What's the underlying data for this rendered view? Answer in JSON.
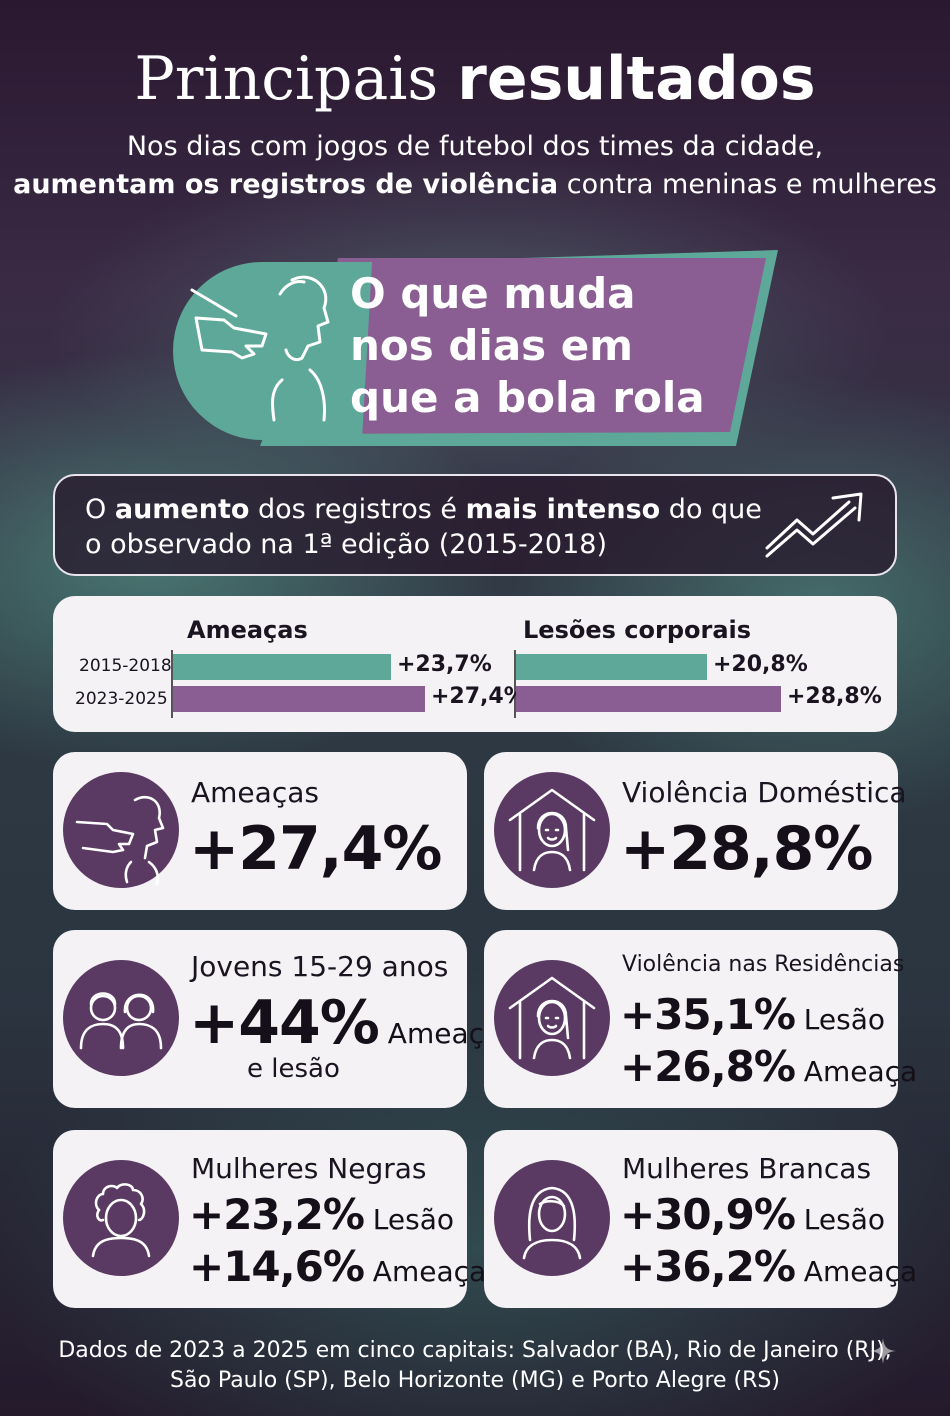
{
  "header": {
    "title_light": "Principais ",
    "title_bold": "resultados",
    "subtitle_line1": "Nos dias com jogos de futebol dos times da cidade,",
    "subtitle_line2_bold": "aumentam os registros de violência",
    "subtitle_line2_rest": " contra meninas e mulheres"
  },
  "banner": {
    "line1": "O que muda",
    "line2": "nos dias em",
    "line3": "que a bola rola",
    "icon": "pointing-hand-face-icon"
  },
  "intense": {
    "part1": "O ",
    "part2_bold": "aumento",
    "part3": " dos registros é ",
    "part4_bold": "mais intenso",
    "part5": " do que",
    "line2": "o observado na 1ª edição (2015-2018)",
    "icon": "trend-up-arrow-icon"
  },
  "comparison": {
    "periods": [
      "2015-2018",
      "2023-2025"
    ],
    "groups": [
      {
        "title": "Ameaças",
        "values": [
          "+23,7%",
          "+27,4%"
        ],
        "numeric": [
          23.7,
          27.4
        ]
      },
      {
        "title": "Lesões corporais",
        "values": [
          "+20,8%",
          "+28,8%"
        ],
        "numeric": [
          20.8,
          28.8
        ]
      }
    ],
    "colors": {
      "first": "#5ea89a",
      "second": "#8a5e92"
    }
  },
  "cards": {
    "ameacas": {
      "label": "Ameaças",
      "value": "+27,4%",
      "icon": "threat-icon"
    },
    "domestica": {
      "label": "Violência Doméstica",
      "value": "+28,8%",
      "icon": "house-woman-icon"
    },
    "jovens": {
      "label": "Jovens 15-29 anos",
      "value": "+44%",
      "suffix": " Ameaça",
      "extra": "e lesão",
      "icon": "young-people-icon"
    },
    "residencias": {
      "label": "Violência nas Residências",
      "value1": "+35,1%",
      "suffix1": " Lesão",
      "value2": "+26,8%",
      "suffix2": " Ameaça",
      "icon": "house-woman-icon"
    },
    "negras": {
      "label": "Mulheres Negras",
      "value1": "+23,2%",
      "suffix1": " Lesão",
      "value2": "+14,6%",
      "suffix2": " Ameaça",
      "icon": "curly-hair-woman-icon"
    },
    "brancas": {
      "label": "Mulheres Brancas",
      "value1": "+30,9%",
      "suffix1": " Lesão",
      "value2": "+36,2%",
      "suffix2": " Ameaça",
      "icon": "long-hair-woman-icon"
    }
  },
  "footer": {
    "line1": "Dados de 2023 a 2025 em cinco capitais: Salvador (BA), Rio de Janeiro (RJ),",
    "line2": "São Paulo (SP), Belo Horizonte (MG) e Porto Alegre (RS)"
  },
  "colors": {
    "accent_teal": "#5ea89a",
    "accent_purple": "#8a5e92",
    "icon_circle": "#5a3a62"
  }
}
